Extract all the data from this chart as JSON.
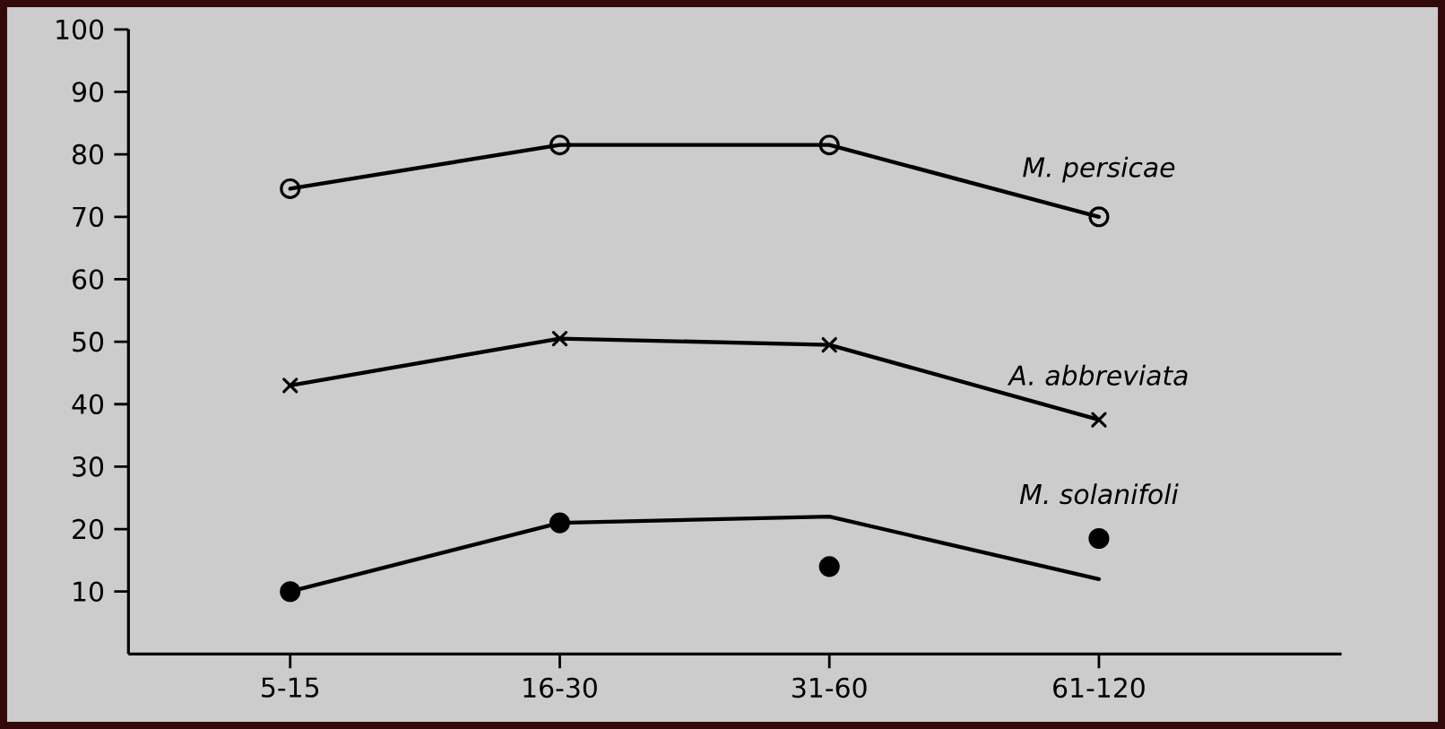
{
  "chart_data": {
    "type": "line",
    "categories": [
      "5-15",
      "16-30",
      "31-60",
      "61-120"
    ],
    "ylim": [
      0,
      100
    ],
    "yticks": [
      10,
      20,
      30,
      40,
      50,
      60,
      70,
      80,
      90,
      100
    ],
    "grid": false,
    "legend": false,
    "series": [
      {
        "name": "M. persicae",
        "color": "#000000",
        "values": [
          74.5,
          81.5,
          81.5,
          70
        ],
        "marker": "circle"
      },
      {
        "name": "A. abbreviata",
        "color": "#000000",
        "values": [
          43,
          50.5,
          49.5,
          37.5
        ],
        "marker": "cross"
      },
      {
        "name": "M. solanifoli",
        "type": "scatter",
        "color": "#000000",
        "values": [
          10,
          21,
          14,
          18.5
        ],
        "marker": "circle"
      },
      {
        "type": "line",
        "color": "#000000",
        "values": [
          10,
          21,
          22,
          12
        ],
        "marker": "none"
      }
    ]
  }
}
